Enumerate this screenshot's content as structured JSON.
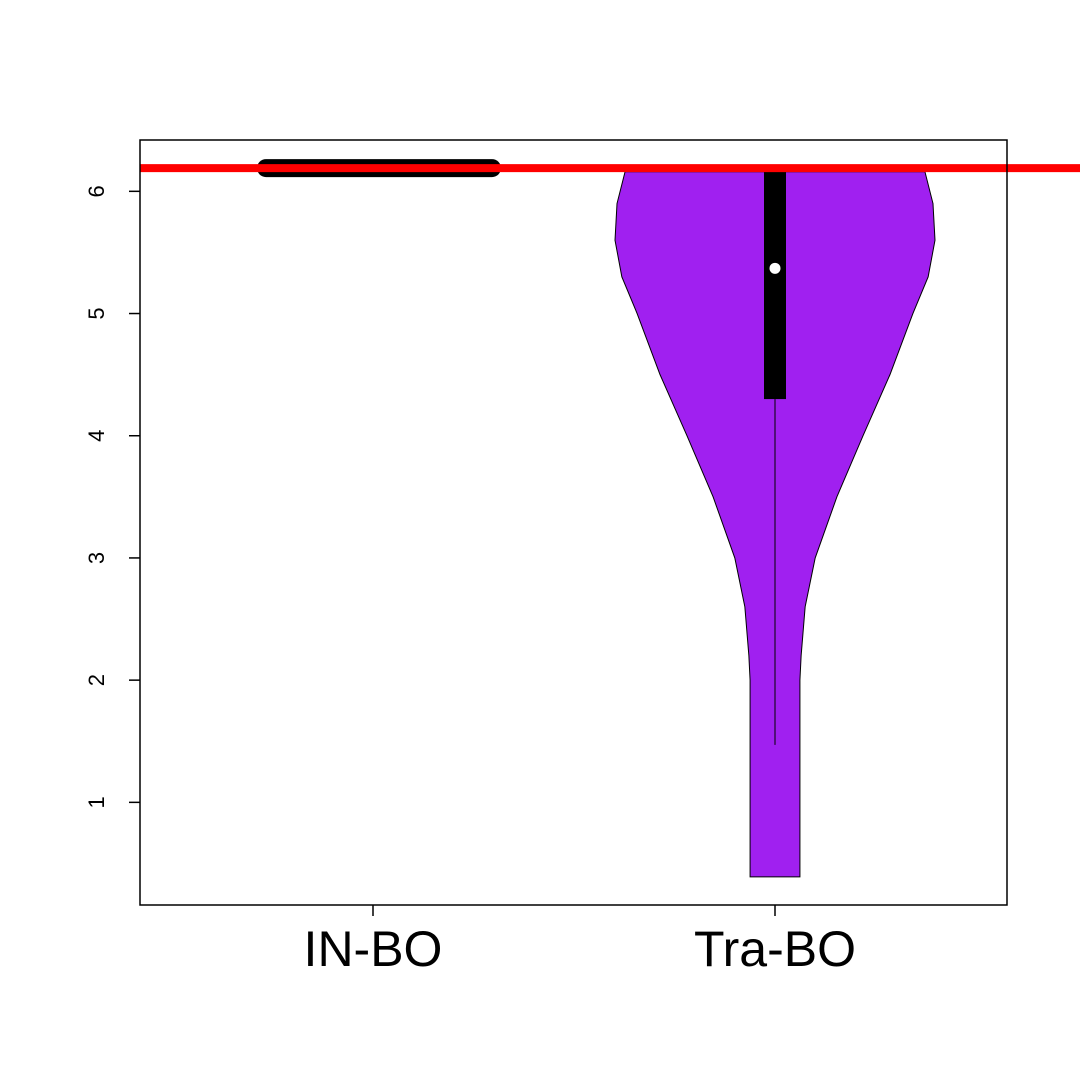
{
  "chart_data": {
    "type": "violin",
    "categories": [
      "IN-BO",
      "Tra-BO"
    ],
    "ylim": [
      0.16,
      6.42
    ],
    "yticks": [
      1,
      2,
      3,
      4,
      5,
      6
    ],
    "reference_line": {
      "value": 6.19,
      "color": "#ff0000"
    },
    "groups": [
      {
        "min": 6.19,
        "q1": 6.19,
        "median": 6.19,
        "q3": 6.19,
        "max": 6.19
      },
      {
        "min": 0.39,
        "lower_whisker": 1.47,
        "q1": 4.3,
        "median": 5.37,
        "q3": 6.16,
        "max": 6.16,
        "color": "#a020f0",
        "profile": {
          "y": [
            6.16,
            5.9,
            5.6,
            5.3,
            5.0,
            4.5,
            4.0,
            3.5,
            3.0,
            2.6,
            2.2,
            2.0,
            1.0,
            0.39
          ],
          "half_width": [
            0.373,
            0.393,
            0.398,
            0.381,
            0.343,
            0.286,
            0.219,
            0.154,
            0.1,
            0.075,
            0.065,
            0.062,
            0.062,
            0.062
          ]
        }
      }
    ]
  }
}
